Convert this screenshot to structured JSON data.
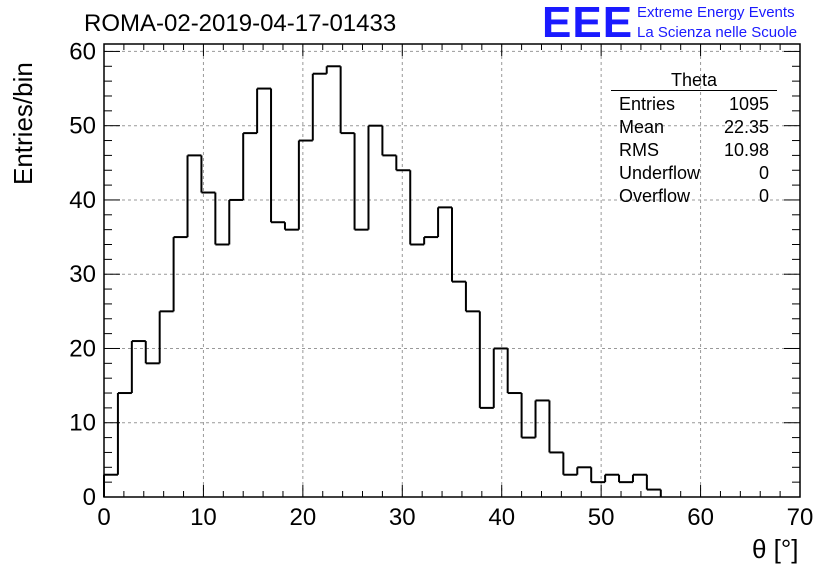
{
  "header": {
    "title": "ROMA-02-2019-04-17-01433",
    "logo": "EEE",
    "org_line1": "Extreme Energy Events",
    "org_line2": "La Scienza nelle Scuole"
  },
  "stats_box": {
    "title": "Theta",
    "rows": [
      {
        "label": "Entries",
        "value": "1095"
      },
      {
        "label": "Mean",
        "value": "22.35"
      },
      {
        "label": "RMS",
        "value": "10.98"
      },
      {
        "label": "Underflow",
        "value": "0"
      },
      {
        "label": "Overflow",
        "value": "0"
      }
    ]
  },
  "chart_data": {
    "type": "bar",
    "title": "ROMA-02-2019-04-17-01433",
    "xlabel": "θ [°]",
    "ylabel": "Entries/bin",
    "xlim": [
      0,
      70
    ],
    "ylim": [
      0,
      61
    ],
    "bin_width": 1.4,
    "bin_start": 0,
    "x_ticks": [
      0,
      10,
      20,
      30,
      40,
      50,
      60,
      70
    ],
    "y_ticks": [
      0,
      10,
      20,
      30,
      40,
      50,
      60
    ],
    "grid": true,
    "values": [
      3,
      14,
      21,
      18,
      25,
      35,
      46,
      41,
      34,
      40,
      49,
      55,
      37,
      36,
      48,
      57,
      58,
      49,
      36,
      50,
      46,
      44,
      34,
      35,
      39,
      29,
      25,
      12,
      20,
      14,
      8,
      13,
      6,
      3,
      4,
      2,
      3,
      2,
      3,
      1,
      0,
      0,
      0,
      0,
      0,
      0,
      0,
      0,
      0,
      0
    ],
    "colors": {
      "line": "#000000",
      "grid": "#999999",
      "logo": "#1a1aff"
    }
  }
}
